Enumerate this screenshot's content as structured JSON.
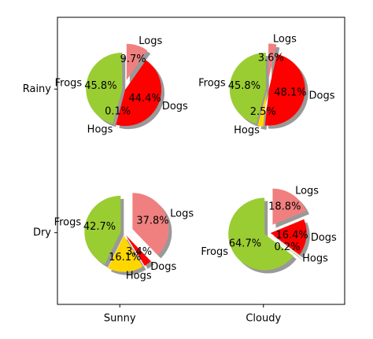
{
  "chart_data": {
    "type": "pie-grid",
    "categories": [
      "Sunny",
      "Cloudy"
    ],
    "rows": [
      "Rainy",
      "Dry"
    ],
    "labels": [
      "Frogs",
      "Hogs",
      "Dogs",
      "Logs"
    ],
    "colors": [
      "#9acd32",
      "#ffd700",
      "#ff0000",
      "#f08080"
    ],
    "pies": [
      [
        {
          "values": [
            45.8,
            0.1,
            44.4,
            9.7
          ],
          "value_labels": [
            "45.8%",
            "0.1%",
            "44.4%",
            "9.7%"
          ]
        },
        {
          "values": [
            45.8,
            2.5,
            48.1,
            3.6
          ],
          "value_labels": [
            "45.8%",
            "2.5%",
            "48.1%",
            "3.6%"
          ]
        }
      ],
      [
        {
          "values": [
            42.7,
            16.1,
            3.4,
            37.8
          ],
          "value_labels": [
            "42.7%",
            "16.1%",
            "3.4%",
            "37.8%"
          ]
        },
        {
          "values": [
            64.7,
            0.2,
            16.4,
            18.8
          ],
          "value_labels": [
            "64.7%",
            "0.2%",
            "16.4%",
            "18.8%"
          ]
        }
      ]
    ]
  }
}
